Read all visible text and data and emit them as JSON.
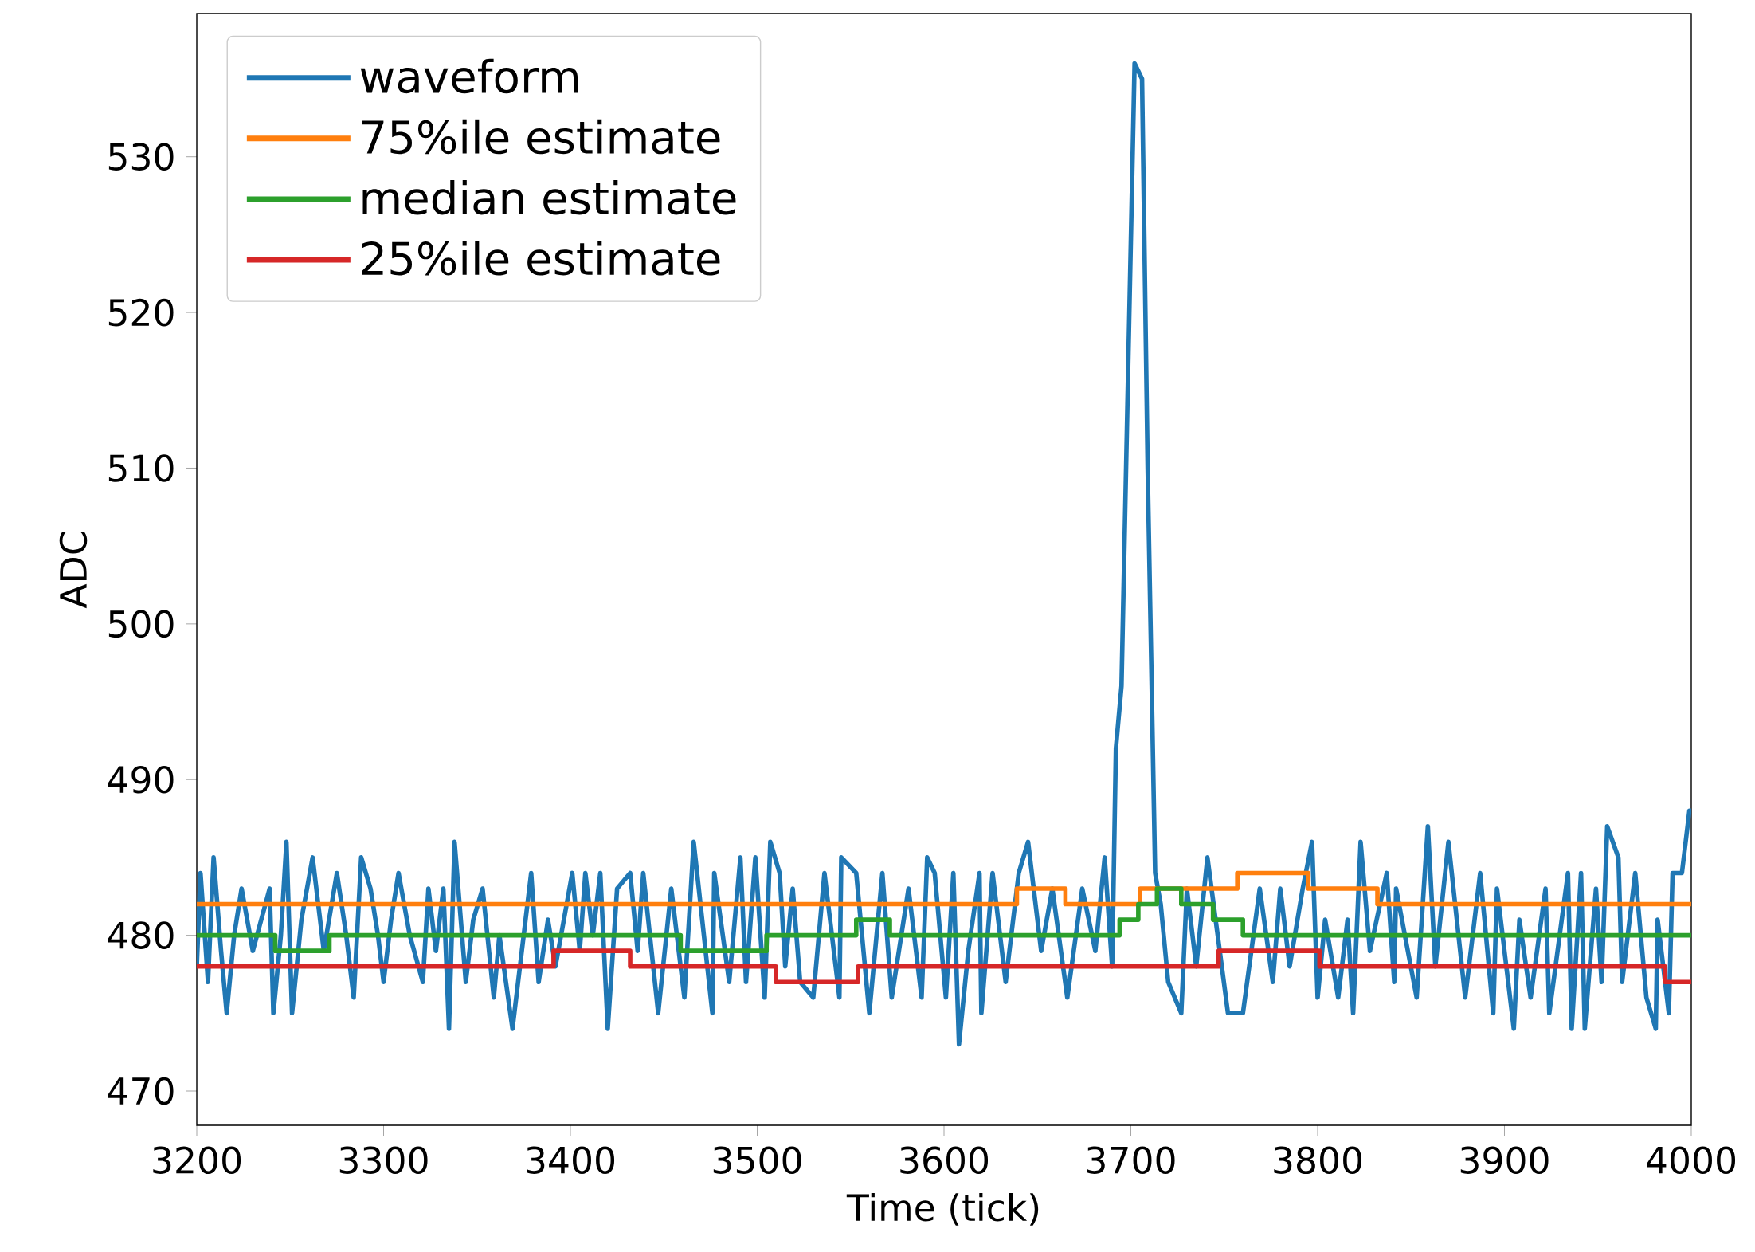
{
  "chart_data": {
    "type": "line",
    "xlabel": "Time (tick)",
    "ylabel": "ADC",
    "xlim": [
      3200,
      4000
    ],
    "ylim": [
      467.8,
      539.2
    ],
    "xticks": [
      3200,
      3300,
      3400,
      3500,
      3600,
      3700,
      3800,
      3900,
      4000
    ],
    "yticks": [
      470,
      480,
      490,
      500,
      510,
      520,
      530
    ],
    "legend": "top left",
    "grid": false,
    "series": [
      {
        "name": "waveform",
        "color": "#1f77b4",
        "x": [
          3200,
          3202,
          3206,
          3209,
          3213,
          3216,
          3220,
          3224,
          3230,
          3239,
          3241,
          3245,
          3248,
          3251,
          3256,
          3262,
          3268,
          3275,
          3280,
          3284,
          3288,
          3293,
          3297,
          3300,
          3304,
          3308,
          3314,
          3321,
          3324,
          3328,
          3332,
          3335,
          3338,
          3344,
          3348,
          3353,
          3359,
          3362,
          3369,
          3374,
          3379,
          3383,
          3388,
          3392,
          3401,
          3405,
          3408,
          3412,
          3416,
          3420,
          3425,
          3432,
          3436,
          3439,
          3447,
          3454,
          3461,
          3466,
          3476,
          3477,
          3485,
          3491,
          3494,
          3499,
          3504,
          3507,
          3512,
          3515,
          3519,
          3523,
          3530,
          3536,
          3544,
          3545,
          3553,
          3560,
          3567,
          3572,
          3581,
          3588,
          3591,
          3595,
          3601,
          3605,
          3608,
          3613,
          3619,
          3620,
          3626,
          3633,
          3640,
          3645,
          3652,
          3658,
          3666,
          3674,
          3681,
          3686,
          3690,
          3692,
          3695,
          3702,
          3706,
          3709,
          3713,
          3716,
          3720,
          3727,
          3730,
          3735,
          3741,
          3752,
          3760,
          3769,
          3776,
          3780,
          3785,
          3792,
          3797,
          3800,
          3804,
          3811,
          3816,
          3819,
          3823,
          3828,
          3837,
          3841,
          3842,
          3853,
          3859,
          3863,
          3870,
          3879,
          3887,
          3894,
          3896,
          3905,
          3908,
          3914,
          3922,
          3924,
          3934,
          3936,
          3941,
          3943,
          3949,
          3952,
          3955,
          3961,
          3963,
          3970,
          3976,
          3981,
          3982,
          3988,
          3990,
          3995,
          3999,
          4000
        ],
        "values": [
          478,
          484,
          477,
          485,
          479,
          475,
          480,
          483,
          479,
          483,
          475,
          480,
          486,
          475,
          481,
          485,
          479,
          484,
          480,
          476,
          485,
          483,
          480,
          477,
          481,
          484,
          480,
          477,
          483,
          479,
          483,
          474,
          486,
          477,
          481,
          483,
          476,
          480,
          474,
          479,
          484,
          477,
          481,
          478,
          484,
          479,
          484,
          480,
          484,
          474,
          483,
          484,
          479,
          484,
          475,
          483,
          476,
          486,
          475,
          484,
          477,
          485,
          477,
          485,
          476,
          486,
          484,
          478,
          483,
          477,
          476,
          484,
          476,
          485,
          484,
          475,
          484,
          476,
          483,
          476,
          485,
          484,
          476,
          484,
          473,
          479,
          484,
          475,
          484,
          477,
          484,
          486,
          479,
          483,
          476,
          483,
          479,
          485,
          478,
          492,
          496,
          536,
          535,
          510,
          484,
          482,
          477,
          475,
          483,
          478,
          485,
          475,
          475,
          483,
          477,
          483,
          478,
          483,
          486,
          476,
          481,
          476,
          481,
          475,
          486,
          479,
          484,
          477,
          483,
          476,
          487,
          478,
          486,
          476,
          484,
          475,
          483,
          474,
          481,
          476,
          483,
          475,
          484,
          474,
          484,
          474,
          483,
          477,
          487,
          485,
          477,
          484,
          476,
          474,
          481,
          475,
          484,
          484,
          488,
          488
        ]
      },
      {
        "name": "75%ile estimate",
        "color": "#ff7f0e",
        "type": "step",
        "x": [
          3200,
          3639,
          3665,
          3705,
          3757,
          3795,
          3832,
          4000
        ],
        "values": [
          482,
          483,
          482,
          483,
          484,
          483,
          482,
          482
        ]
      },
      {
        "name": "median estimate",
        "color": "#2ca02c",
        "type": "step",
        "x": [
          3200,
          3242,
          3271,
          3459,
          3505,
          3553,
          3571,
          3694,
          3704,
          3714,
          3727,
          3744,
          3760,
          4000
        ],
        "values": [
          480,
          479,
          480,
          479,
          480,
          481,
          480,
          481,
          482,
          483,
          482,
          481,
          480,
          480
        ]
      },
      {
        "name": "25%ile estimate",
        "color": "#d62728",
        "type": "step",
        "x": [
          3200,
          3391,
          3432,
          3510,
          3554,
          3747,
          3801,
          3986,
          4000
        ],
        "values": [
          478,
          479,
          478,
          477,
          478,
          479,
          478,
          477,
          477
        ]
      }
    ]
  }
}
